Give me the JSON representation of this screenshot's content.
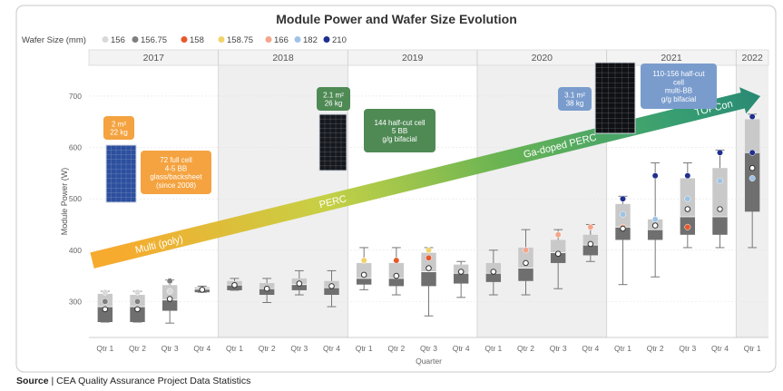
{
  "chart_data": {
    "type": "box",
    "title": "Module Power and Wafer Size Evolution",
    "legend": {
      "title": "Wafer Size (mm)",
      "placement": "top-left",
      "entries": [
        {
          "name": "156",
          "color": "#d9d9d9"
        },
        {
          "name": "156.75",
          "color": "#7f7f7f"
        },
        {
          "name": "158",
          "color": "#e8582a"
        },
        {
          "name": "158.75",
          "color": "#f2d36b"
        },
        {
          "name": "166",
          "color": "#f4a58a"
        },
        {
          "name": "182",
          "color": "#9dc3e6"
        },
        {
          "name": "210",
          "color": "#1f2f8f"
        }
      ]
    },
    "xlabel": "Quarter",
    "ylabel": "Module Power (W)",
    "ylim": [
      230,
      760
    ],
    "yticks": [
      300,
      400,
      500,
      600,
      700
    ],
    "years": [
      {
        "label": "2017",
        "quarters": 4,
        "shaded": false
      },
      {
        "label": "2018",
        "quarters": 4,
        "shaded": true
      },
      {
        "label": "2019",
        "quarters": 4,
        "shaded": false
      },
      {
        "label": "2020",
        "quarters": 4,
        "shaded": true
      },
      {
        "label": "2021",
        "quarters": 4,
        "shaded": false
      },
      {
        "label": "2022",
        "quarters": 1,
        "shaded": true
      }
    ],
    "categories": [
      "Qtr 1",
      "Qtr 2",
      "Qtr 3",
      "Qtr 4",
      "Qtr 1",
      "Qtr 2",
      "Qtr 3",
      "Qtr 4",
      "Qtr 1",
      "Qtr 2",
      "Qtr 3",
      "Qtr 4",
      "Qtr 1",
      "Qtr 2",
      "Qtr 3",
      "Qtr 4",
      "Qtr 1",
      "Qtr 2",
      "Qtr 3",
      "Qtr 4",
      "Qtr 1"
    ],
    "boxes": [
      {
        "min": 260,
        "q1": 260,
        "median": 290,
        "q3": 315,
        "max": 320,
        "mean": 285,
        "points": [
          {
            "y": 318,
            "size": "156"
          },
          {
            "y": 300,
            "size": "156.75"
          }
        ]
      },
      {
        "min": 260,
        "q1": 260,
        "median": 290,
        "q3": 313,
        "max": 320,
        "mean": 285,
        "points": [
          {
            "y": 318,
            "size": "156"
          },
          {
            "y": 300,
            "size": "156.75"
          }
        ]
      },
      {
        "min": 258,
        "q1": 282,
        "median": 303,
        "q3": 332,
        "max": 342,
        "mean": 305,
        "points": [
          {
            "y": 340,
            "size": "156.75"
          },
          {
            "y": 320,
            "size": "156"
          }
        ]
      },
      {
        "min": 318,
        "q1": 318,
        "median": 324,
        "q3": 328,
        "max": 330,
        "mean": 323,
        "points": []
      },
      {
        "min": 322,
        "q1": 322,
        "median": 332,
        "q3": 340,
        "max": 345,
        "mean": 332,
        "points": []
      },
      {
        "min": 298,
        "q1": 313,
        "median": 325,
        "q3": 336,
        "max": 345,
        "mean": 325,
        "points": []
      },
      {
        "min": 313,
        "q1": 322,
        "median": 333,
        "q3": 345,
        "max": 360,
        "mean": 335,
        "points": []
      },
      {
        "min": 290,
        "q1": 313,
        "median": 327,
        "q3": 340,
        "max": 360,
        "mean": 330,
        "points": []
      },
      {
        "min": 323,
        "q1": 333,
        "median": 345,
        "q3": 375,
        "max": 405,
        "mean": 352,
        "points": [
          {
            "y": 380,
            "size": "158.75"
          }
        ]
      },
      {
        "min": 313,
        "q1": 330,
        "median": 345,
        "q3": 375,
        "max": 405,
        "mean": 350,
        "points": [
          {
            "y": 380,
            "size": "158"
          }
        ]
      },
      {
        "min": 272,
        "q1": 330,
        "median": 358,
        "q3": 395,
        "max": 405,
        "mean": 365,
        "points": [
          {
            "y": 400,
            "size": "158.75"
          },
          {
            "y": 385,
            "size": "158"
          }
        ]
      },
      {
        "min": 308,
        "q1": 335,
        "median": 355,
        "q3": 372,
        "max": 378,
        "mean": 358,
        "points": []
      },
      {
        "min": 313,
        "q1": 338,
        "median": 355,
        "q3": 375,
        "max": 400,
        "mean": 358,
        "points": []
      },
      {
        "min": 313,
        "q1": 340,
        "median": 365,
        "q3": 405,
        "max": 440,
        "mean": 375,
        "points": [
          {
            "y": 400,
            "size": "166"
          }
        ]
      },
      {
        "min": 325,
        "q1": 375,
        "median": 395,
        "q3": 420,
        "max": 440,
        "mean": 393,
        "points": [
          {
            "y": 430,
            "size": "166"
          }
        ]
      },
      {
        "min": 378,
        "q1": 390,
        "median": 410,
        "q3": 430,
        "max": 450,
        "mean": 412,
        "points": [
          {
            "y": 445,
            "size": "166"
          }
        ]
      },
      {
        "min": 333,
        "q1": 420,
        "median": 445,
        "q3": 490,
        "max": 505,
        "mean": 442,
        "points": [
          {
            "y": 500,
            "size": "210"
          },
          {
            "y": 470,
            "size": "182"
          },
          {
            "y": 445,
            "size": "166"
          }
        ]
      },
      {
        "min": 348,
        "q1": 420,
        "median": 440,
        "q3": 460,
        "max": 570,
        "mean": 448,
        "points": [
          {
            "y": 545,
            "size": "210"
          },
          {
            "y": 460,
            "size": "182"
          }
        ]
      },
      {
        "min": 405,
        "q1": 430,
        "median": 465,
        "q3": 540,
        "max": 570,
        "mean": 480,
        "points": [
          {
            "y": 545,
            "size": "210"
          },
          {
            "y": 500,
            "size": "182"
          },
          {
            "y": 445,
            "size": "158"
          }
        ]
      },
      {
        "min": 405,
        "q1": 430,
        "median": 465,
        "q3": 560,
        "max": 595,
        "mean": 480,
        "points": [
          {
            "y": 590,
            "size": "210"
          },
          {
            "y": 535,
            "size": "182"
          },
          {
            "y": 480,
            "size": "158"
          }
        ]
      },
      {
        "min": 405,
        "q1": 475,
        "median": 590,
        "q3": 655,
        "max": 665,
        "mean": 560,
        "points": [
          {
            "y": 660,
            "size": "210"
          },
          {
            "y": 590,
            "size": "210"
          },
          {
            "y": 540,
            "size": "182"
          }
        ]
      }
    ],
    "technology_arrow": {
      "from": {
        "quarter": 0,
        "y": 380
      },
      "to": {
        "quarter": 20,
        "y": 700
      }
    },
    "technology_labels": [
      {
        "text": "Multi (poly)"
      },
      {
        "text": "PERC"
      },
      {
        "text": "Ga-doped PERC"
      },
      {
        "text": "TOPCon"
      }
    ],
    "annotations": [
      {
        "id": "a2017size",
        "text": [
          "2 m²",
          "22 kg"
        ],
        "color": "#f4a340"
      },
      {
        "id": "a2017cell",
        "text": [
          "72 full cell",
          "4-5 BB",
          "glass/backsheet",
          "(since 2008)"
        ],
        "color": "#f4a340"
      },
      {
        "id": "a2018size",
        "text": [
          "2.1 m²",
          "26 kg"
        ],
        "color": "#4f8a55"
      },
      {
        "id": "a2019cell",
        "text": [
          "144 half-cut cell",
          "5 BB",
          "g/g bifacial"
        ],
        "color": "#4f8a55"
      },
      {
        "id": "a2020size",
        "text": [
          "3.1 m²",
          "38 kg"
        ],
        "color": "#7a9ccd"
      },
      {
        "id": "a2021cell",
        "text": [
          "110-156 half-cut",
          "cell",
          "multi-BB",
          "g/g bifacial"
        ],
        "color": "#7a9ccd"
      }
    ]
  },
  "source": {
    "label": "Source",
    "text": "CEA Quality Assurance Project Data Statistics"
  }
}
